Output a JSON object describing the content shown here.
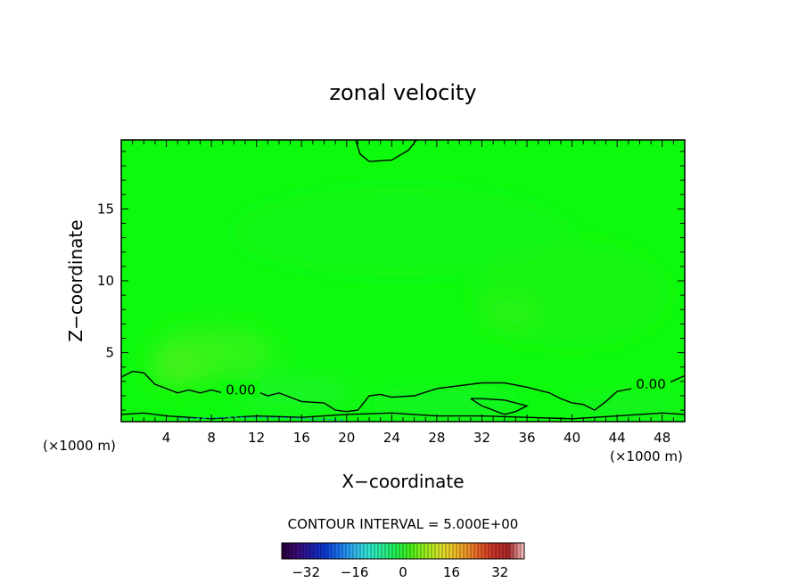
{
  "chart_data": {
    "type": "heatmap",
    "title": "zonal velocity",
    "xlabel": "X−coordinate",
    "ylabel": "Z−coordinate",
    "x_unit_left": "(×1000 m)",
    "x_unit_right": "(×1000 m)",
    "xlim": [
      0,
      50
    ],
    "ylim": [
      0.2,
      19.8
    ],
    "x_ticks": [
      4,
      8,
      12,
      16,
      20,
      24,
      28,
      32,
      36,
      40,
      44,
      48
    ],
    "y_ticks": [
      5,
      10,
      15
    ],
    "contour_interval_text": "CONTOUR INTERVAL = 5.000E+00",
    "contour_label": "0.00",
    "contour_label_positions": [
      [
        10.6,
        2.4
      ],
      [
        47,
        2.8
      ]
    ],
    "background_value": 2,
    "colorbar": {
      "range": [
        -40,
        40
      ],
      "ticks": [
        -32,
        -16,
        0,
        16,
        32
      ],
      "tick_labels": [
        "−32",
        "−16",
        "0",
        "16",
        "32"
      ],
      "colors": [
        "#2a003f",
        "#3b0b7a",
        "#1e1ea8",
        "#0a3cd8",
        "#1e78f0",
        "#32b4f0",
        "#2ee6d2",
        "#2bf09a",
        "#1ef050",
        "#46f01a",
        "#96f01a",
        "#d2e628",
        "#f0c828",
        "#f09628",
        "#e65a28",
        "#c83228",
        "#a82828",
        "#f4b4b4"
      ]
    },
    "contours": [
      {
        "level": 0,
        "points": [
          [
            0,
            3.3
          ],
          [
            1,
            3.7
          ],
          [
            2,
            3.6
          ],
          [
            3,
            2.8
          ],
          [
            4,
            2.5
          ],
          [
            5,
            2.2
          ],
          [
            6,
            2.4
          ],
          [
            7,
            2.2
          ],
          [
            8,
            2.4
          ],
          [
            9,
            2.2
          ],
          [
            10,
            2.3
          ],
          [
            11,
            2.0
          ],
          [
            12,
            2.3
          ],
          [
            13,
            2.0
          ],
          [
            14,
            2.2
          ],
          [
            15,
            1.9
          ],
          [
            16,
            1.6
          ],
          [
            18,
            1.5
          ],
          [
            19,
            1.0
          ],
          [
            20,
            0.9
          ],
          [
            21,
            1.0
          ],
          [
            22,
            2.0
          ],
          [
            23,
            2.1
          ],
          [
            24,
            1.9
          ],
          [
            26,
            2.0
          ],
          [
            28,
            2.5
          ],
          [
            30,
            2.7
          ],
          [
            32,
            2.9
          ],
          [
            34,
            2.9
          ],
          [
            36,
            2.6
          ],
          [
            38,
            2.2
          ],
          [
            39,
            1.8
          ],
          [
            40,
            1.5
          ],
          [
            41,
            1.4
          ],
          [
            42,
            1.0
          ],
          [
            43,
            1.6
          ],
          [
            44,
            2.3
          ],
          [
            46,
            2.6
          ],
          [
            48,
            2.7
          ],
          [
            50,
            3.4
          ]
        ]
      },
      {
        "level": 0,
        "points": [
          [
            20.8,
            19.8
          ],
          [
            21.2,
            18.8
          ],
          [
            22,
            18.3
          ],
          [
            24,
            18.4
          ],
          [
            25.5,
            19.1
          ],
          [
            26.2,
            19.8
          ]
        ]
      },
      {
        "level": 0,
        "points": [
          [
            31,
            1.8
          ],
          [
            32,
            1.3
          ],
          [
            33,
            1.0
          ],
          [
            34,
            0.7
          ],
          [
            35,
            0.9
          ],
          [
            36,
            1.3
          ],
          [
            34,
            1.7
          ],
          [
            32,
            1.8
          ],
          [
            31,
            1.8
          ]
        ]
      },
      {
        "level": 0,
        "points": [
          [
            0,
            0.7
          ],
          [
            2,
            0.8
          ],
          [
            4,
            0.6
          ],
          [
            8,
            0.4
          ],
          [
            12,
            0.6
          ],
          [
            16,
            0.5
          ],
          [
            20,
            0.7
          ],
          [
            24,
            0.8
          ],
          [
            28,
            0.6
          ],
          [
            32,
            0.6
          ],
          [
            36,
            0.5
          ],
          [
            40,
            0.4
          ],
          [
            44,
            0.6
          ],
          [
            48,
            0.8
          ],
          [
            50,
            0.7
          ]
        ]
      }
    ],
    "negative_contours": [
      {
        "level": -5,
        "points": [
          [
            5,
            0.4
          ],
          [
            10,
            0.5
          ],
          [
            15,
            0.45
          ],
          [
            20,
            0.3
          ]
        ]
      }
    ]
  }
}
